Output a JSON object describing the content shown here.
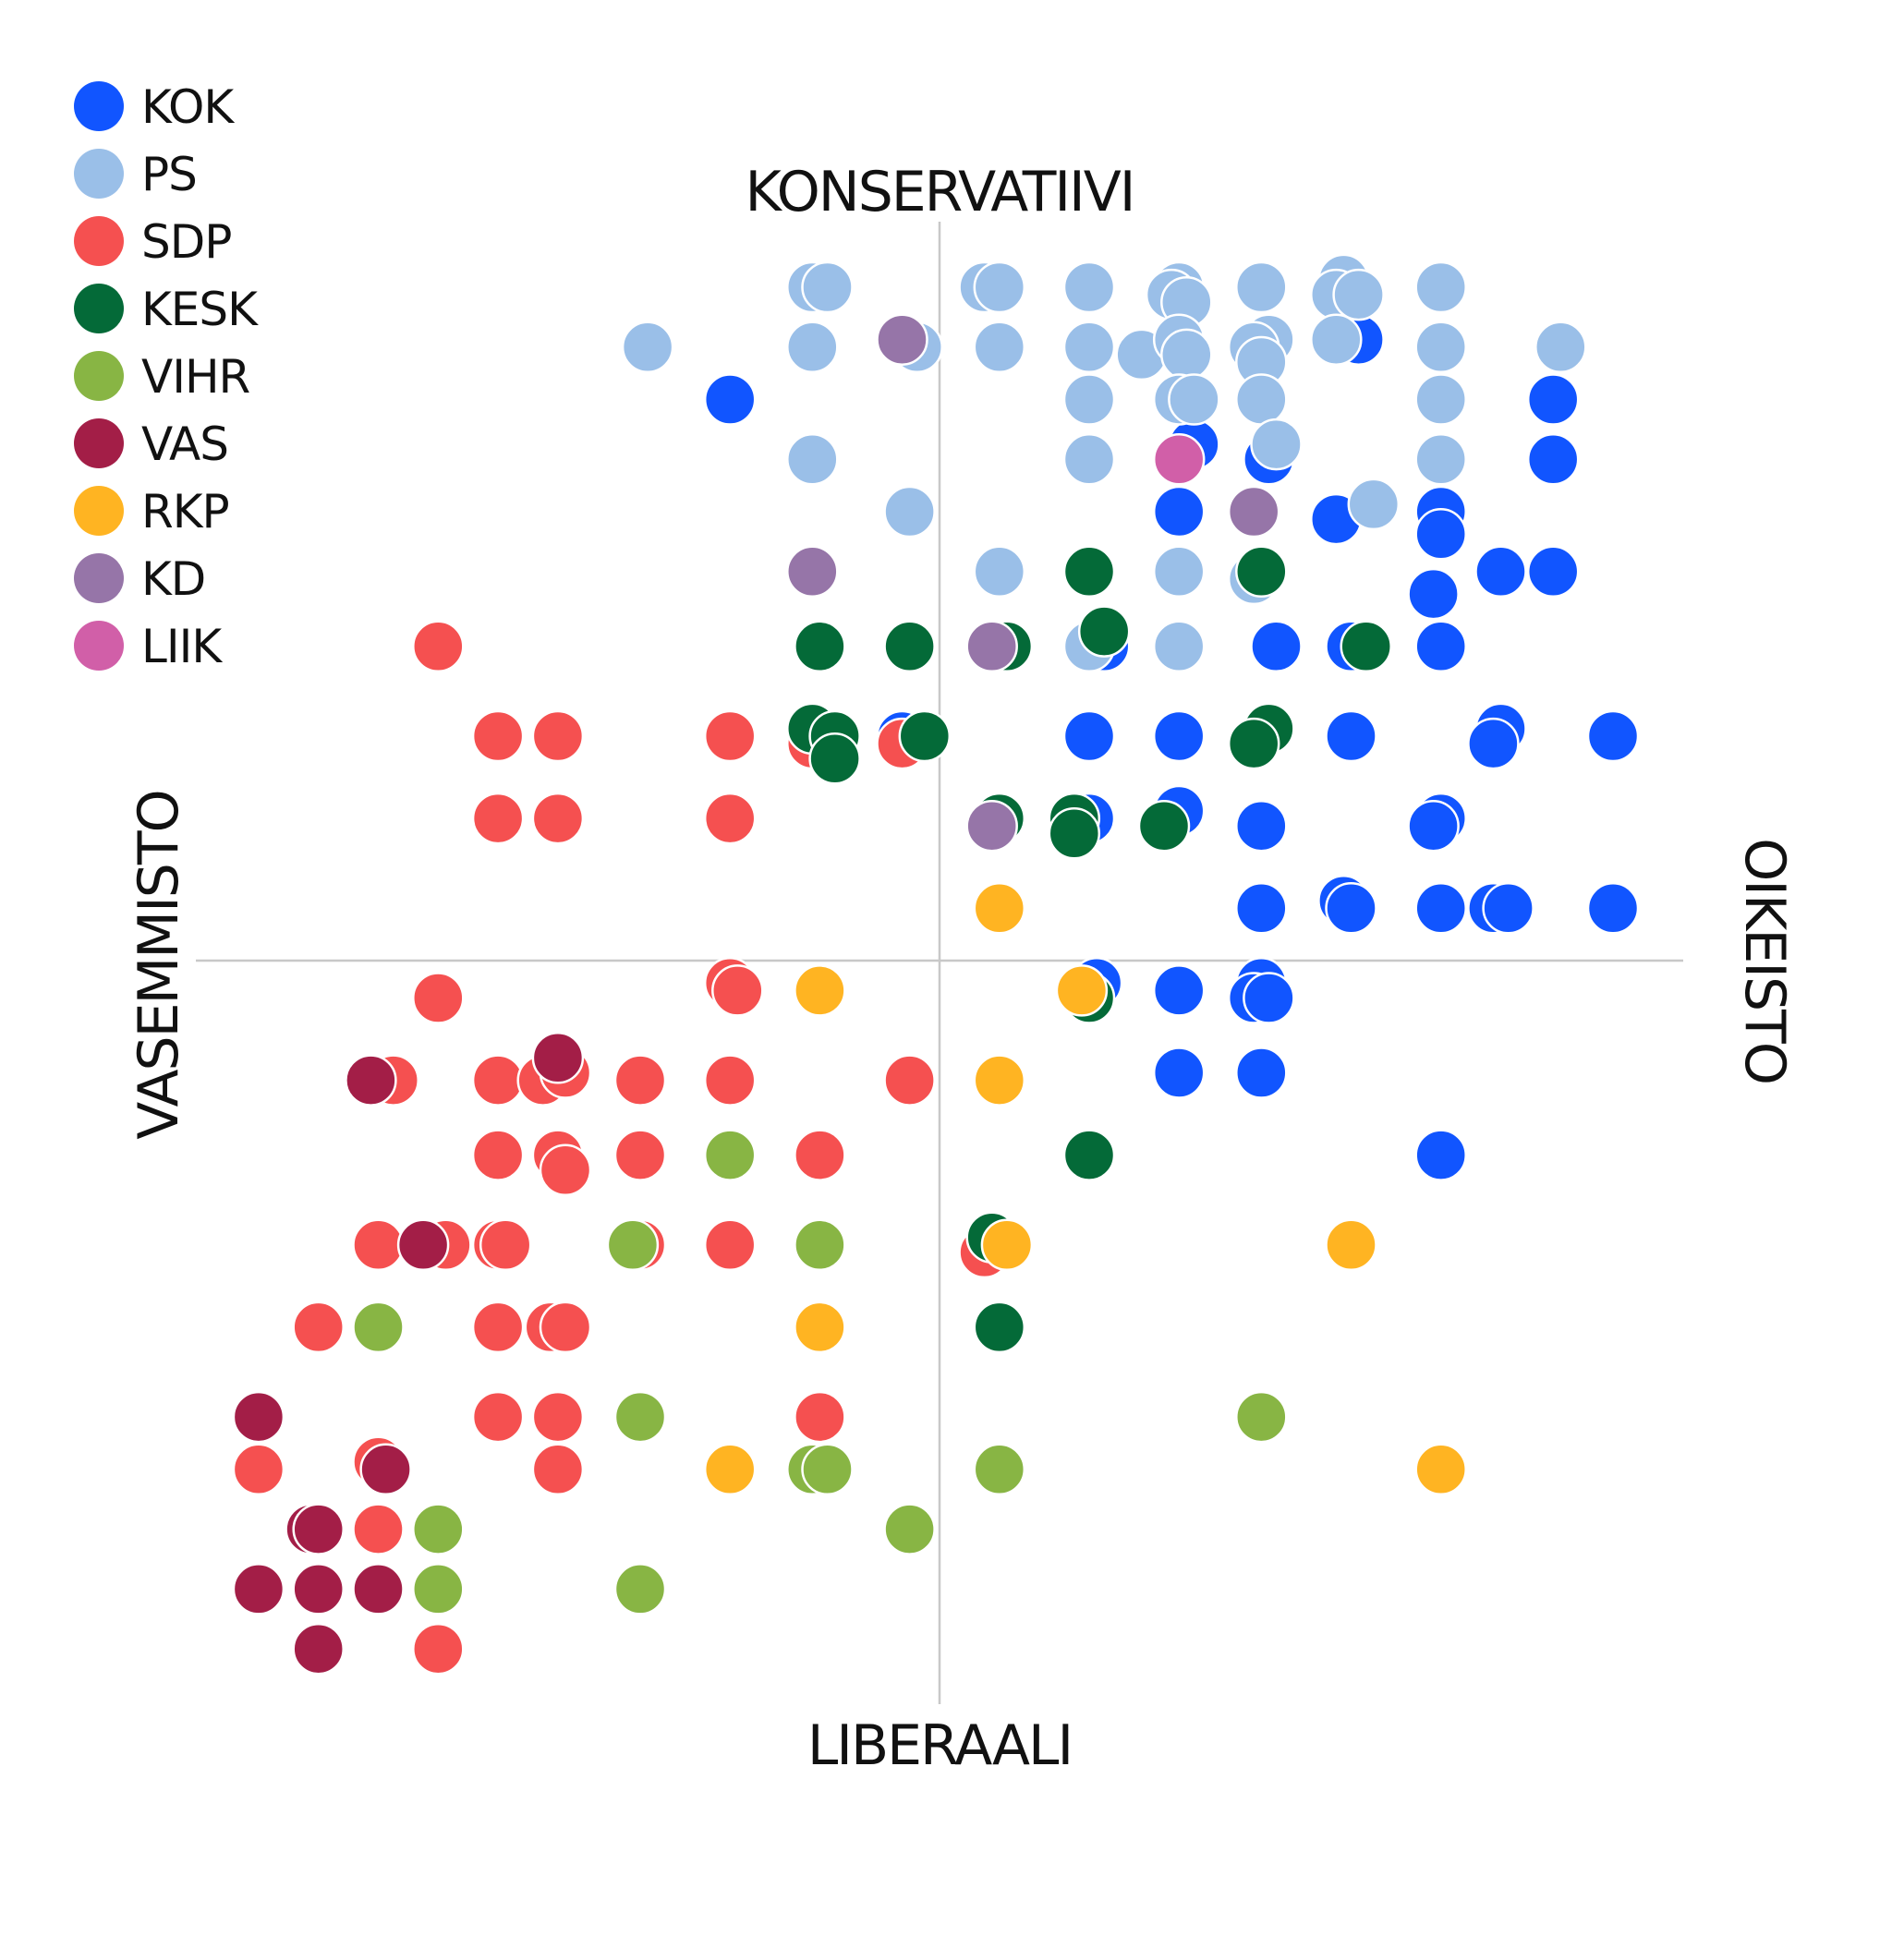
{
  "chart_data": {
    "type": "scatter",
    "title": "",
    "axes": {
      "top": "KONSERVATIIVI",
      "bottom": "LIBERAALI",
      "left": "VASEMMISTO",
      "right": "OIKEISTO"
    },
    "xlim": [
      -10,
      10
    ],
    "ylim": [
      -10,
      10
    ],
    "grid": false,
    "legend_position": "top-left",
    "series": [
      {
        "name": "KOK",
        "color": "#1155ff",
        "points": [
          [
            -2.8,
            7.5
          ],
          [
            5.6,
            8.3
          ],
          [
            8.2,
            7.5
          ],
          [
            8.2,
            6.7
          ],
          [
            3.4,
            6.9
          ],
          [
            4.4,
            6.7
          ],
          [
            3.2,
            6.0
          ],
          [
            4.2,
            6.0
          ],
          [
            5.3,
            5.9
          ],
          [
            6.7,
            6.0
          ],
          [
            6.7,
            5.7
          ],
          [
            7.5,
            5.2
          ],
          [
            8.2,
            5.2
          ],
          [
            6.6,
            4.9
          ],
          [
            2.2,
            4.2
          ],
          [
            4.5,
            4.2
          ],
          [
            5.5,
            4.2
          ],
          [
            6.7,
            4.2
          ],
          [
            -0.5,
            3.0
          ],
          [
            2.0,
            3.0
          ],
          [
            3.2,
            3.0
          ],
          [
            5.5,
            3.0
          ],
          [
            7.5,
            3.1
          ],
          [
            7.4,
            2.9
          ],
          [
            9.0,
            3.0
          ],
          [
            2.0,
            1.9
          ],
          [
            3.2,
            2.0
          ],
          [
            4.3,
            1.8
          ],
          [
            6.7,
            1.9
          ],
          [
            6.6,
            1.8
          ],
          [
            4.3,
            0.7
          ],
          [
            5.4,
            0.8
          ],
          [
            5.5,
            0.7
          ],
          [
            6.7,
            0.7
          ],
          [
            7.4,
            0.7
          ],
          [
            7.6,
            0.7
          ],
          [
            9.0,
            0.7
          ],
          [
            2.1,
            -0.3
          ],
          [
            3.2,
            -0.4
          ],
          [
            4.3,
            -0.3
          ],
          [
            4.2,
            -0.5
          ],
          [
            4.4,
            -0.5
          ],
          [
            3.2,
            -1.5
          ],
          [
            4.3,
            -1.5
          ],
          [
            6.7,
            -2.6
          ]
        ]
      },
      {
        "name": "PS",
        "color": "#9abfe8",
        "points": [
          [
            -1.7,
            9.0
          ],
          [
            -1.5,
            9.0
          ],
          [
            0.6,
            9.0
          ],
          [
            0.8,
            9.0
          ],
          [
            2.0,
            9.0
          ],
          [
            3.2,
            9.0
          ],
          [
            3.1,
            8.9
          ],
          [
            3.3,
            8.8
          ],
          [
            4.3,
            9.0
          ],
          [
            5.4,
            9.1
          ],
          [
            5.3,
            8.9
          ],
          [
            5.6,
            8.9
          ],
          [
            6.7,
            9.0
          ],
          [
            -3.9,
            8.2
          ],
          [
            -1.7,
            8.2
          ],
          [
            -0.3,
            8.2
          ],
          [
            0.8,
            8.2
          ],
          [
            2.0,
            8.2
          ],
          [
            2.7,
            8.1
          ],
          [
            3.2,
            8.3
          ],
          [
            3.3,
            8.1
          ],
          [
            4.4,
            8.3
          ],
          [
            4.2,
            8.2
          ],
          [
            4.3,
            8.0
          ],
          [
            5.3,
            8.3
          ],
          [
            6.7,
            8.2
          ],
          [
            8.3,
            8.2
          ],
          [
            2.0,
            7.5
          ],
          [
            3.2,
            7.5
          ],
          [
            3.4,
            7.5
          ],
          [
            4.3,
            7.5
          ],
          [
            6.7,
            7.5
          ],
          [
            -1.7,
            6.7
          ],
          [
            2.0,
            6.7
          ],
          [
            4.5,
            6.9
          ],
          [
            6.7,
            6.7
          ],
          [
            -0.4,
            6.0
          ],
          [
            5.8,
            6.1
          ],
          [
            0.8,
            5.2
          ],
          [
            3.2,
            5.2
          ],
          [
            4.2,
            5.1
          ],
          [
            2.0,
            4.2
          ],
          [
            3.2,
            4.2
          ]
        ]
      },
      {
        "name": "SDP",
        "color": "#f55050",
        "points": [
          [
            -6.7,
            4.2
          ],
          [
            -5.9,
            3.0
          ],
          [
            -5.1,
            3.0
          ],
          [
            -2.8,
            3.0
          ],
          [
            -1.7,
            2.9
          ],
          [
            -0.5,
            2.9
          ],
          [
            -5.9,
            1.9
          ],
          [
            -5.1,
            1.9
          ],
          [
            -2.8,
            1.9
          ],
          [
            -2.8,
            -0.3
          ],
          [
            -2.7,
            -0.4
          ],
          [
            -6.7,
            -0.5
          ],
          [
            -7.3,
            -1.6
          ],
          [
            -5.9,
            -1.6
          ],
          [
            -5.3,
            -1.6
          ],
          [
            -5.0,
            -1.5
          ],
          [
            -4.0,
            -1.6
          ],
          [
            -2.8,
            -1.6
          ],
          [
            -0.4,
            -1.6
          ],
          [
            -5.9,
            -2.6
          ],
          [
            -5.1,
            -2.6
          ],
          [
            -5.0,
            -2.8
          ],
          [
            -4.0,
            -2.6
          ],
          [
            -1.6,
            -2.6
          ],
          [
            -7.5,
            -3.8
          ],
          [
            -6.6,
            -3.8
          ],
          [
            -5.9,
            -3.8
          ],
          [
            -5.8,
            -3.8
          ],
          [
            -4.0,
            -3.8
          ],
          [
            -2.8,
            -3.8
          ],
          [
            0.6,
            -3.9
          ],
          [
            -8.3,
            -4.9
          ],
          [
            -5.9,
            -4.9
          ],
          [
            -5.2,
            -4.9
          ],
          [
            -5.0,
            -4.9
          ],
          [
            -5.9,
            -6.1
          ],
          [
            -5.1,
            -6.1
          ],
          [
            -1.6,
            -6.1
          ],
          [
            -9.1,
            -6.8
          ],
          [
            -7.5,
            -6.7
          ],
          [
            -5.1,
            -6.8
          ],
          [
            -7.5,
            -7.6
          ],
          [
            -6.7,
            -9.2
          ]
        ]
      },
      {
        "name": "KESK",
        "color": "#046a38",
        "points": [
          [
            2.0,
            5.2
          ],
          [
            4.3,
            5.2
          ],
          [
            -1.6,
            4.2
          ],
          [
            -0.4,
            4.2
          ],
          [
            0.9,
            4.2
          ],
          [
            2.2,
            4.4
          ],
          [
            5.7,
            4.2
          ],
          [
            -1.7,
            3.1
          ],
          [
            -1.4,
            3.0
          ],
          [
            -1.4,
            2.7
          ],
          [
            -0.2,
            3.0
          ],
          [
            4.4,
            3.1
          ],
          [
            4.2,
            2.9
          ],
          [
            0.8,
            1.9
          ],
          [
            1.8,
            1.9
          ],
          [
            1.8,
            1.7
          ],
          [
            3.0,
            1.8
          ],
          [
            2.0,
            -0.5
          ],
          [
            2.0,
            -2.6
          ],
          [
            0.7,
            -3.7
          ],
          [
            0.8,
            -4.9
          ]
        ]
      },
      {
        "name": "VIHR",
        "color": "#88b544",
        "points": [
          [
            -2.8,
            -2.6
          ],
          [
            -4.1,
            -3.8
          ],
          [
            -1.6,
            -3.8
          ],
          [
            -7.5,
            -4.9
          ],
          [
            -4.0,
            -6.1
          ],
          [
            4.3,
            -6.1
          ],
          [
            -1.7,
            -6.8
          ],
          [
            -1.5,
            -6.8
          ],
          [
            0.8,
            -6.8
          ],
          [
            -6.7,
            -7.6
          ],
          [
            -0.4,
            -7.6
          ],
          [
            -6.7,
            -8.4
          ],
          [
            -4.0,
            -8.4
          ]
        ]
      },
      {
        "name": "VAS",
        "color": "#a31e47",
        "points": [
          [
            -5.1,
            -1.3
          ],
          [
            -7.6,
            -1.6
          ],
          [
            -6.9,
            -3.8
          ],
          [
            -9.1,
            -6.1
          ],
          [
            -7.4,
            -6.8
          ],
          [
            -8.4,
            -7.6
          ],
          [
            -8.3,
            -7.6
          ],
          [
            -9.1,
            -8.4
          ],
          [
            -8.3,
            -8.4
          ],
          [
            -7.5,
            -8.4
          ],
          [
            -8.3,
            -9.2
          ]
        ]
      },
      {
        "name": "RKP",
        "color": "#ffb422",
        "points": [
          [
            0.8,
            0.7
          ],
          [
            -1.6,
            -0.4
          ],
          [
            1.9,
            -0.4
          ],
          [
            0.8,
            -1.6
          ],
          [
            0.9,
            -3.8
          ],
          [
            5.5,
            -3.8
          ],
          [
            -1.6,
            -4.9
          ],
          [
            -2.8,
            -6.8
          ],
          [
            6.7,
            -6.8
          ]
        ]
      },
      {
        "name": "KD",
        "color": "#9675a8",
        "points": [
          [
            -0.5,
            8.3
          ],
          [
            4.2,
            6.0
          ],
          [
            -1.7,
            5.2
          ],
          [
            0.7,
            4.2
          ],
          [
            0.7,
            1.8
          ]
        ]
      },
      {
        "name": "LIIK",
        "color": "#d15fa8",
        "points": [
          [
            3.2,
            6.7
          ]
        ]
      }
    ]
  }
}
